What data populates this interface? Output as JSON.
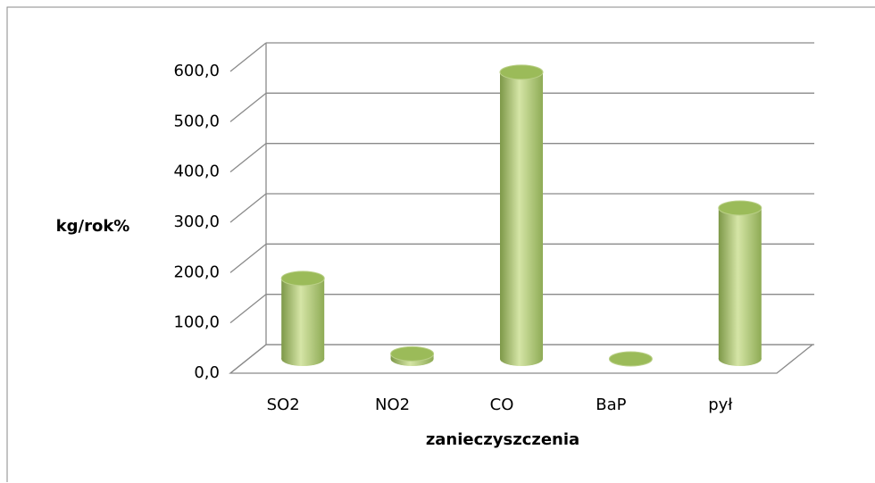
{
  "chart_data": {
    "type": "bar3d",
    "categories": [
      "SO2",
      "NO2",
      "CO",
      "BaP",
      "pył"
    ],
    "values": [
      160,
      10,
      570,
      0,
      300
    ],
    "color": "#9bbb59",
    "ylabel": "kg/rok%",
    "xlabel": "zanieczyszczenia",
    "ylim": [
      0,
      600
    ],
    "yticks": [
      {
        "value": 0,
        "label": "0,0"
      },
      {
        "value": 100,
        "label": "100,0"
      },
      {
        "value": 200,
        "label": "200,0"
      },
      {
        "value": 300,
        "label": "300,0"
      },
      {
        "value": 400,
        "label": "400,0"
      },
      {
        "value": 500,
        "label": "500,0"
      },
      {
        "value": 600,
        "label": "600,0"
      }
    ],
    "grid": true
  }
}
